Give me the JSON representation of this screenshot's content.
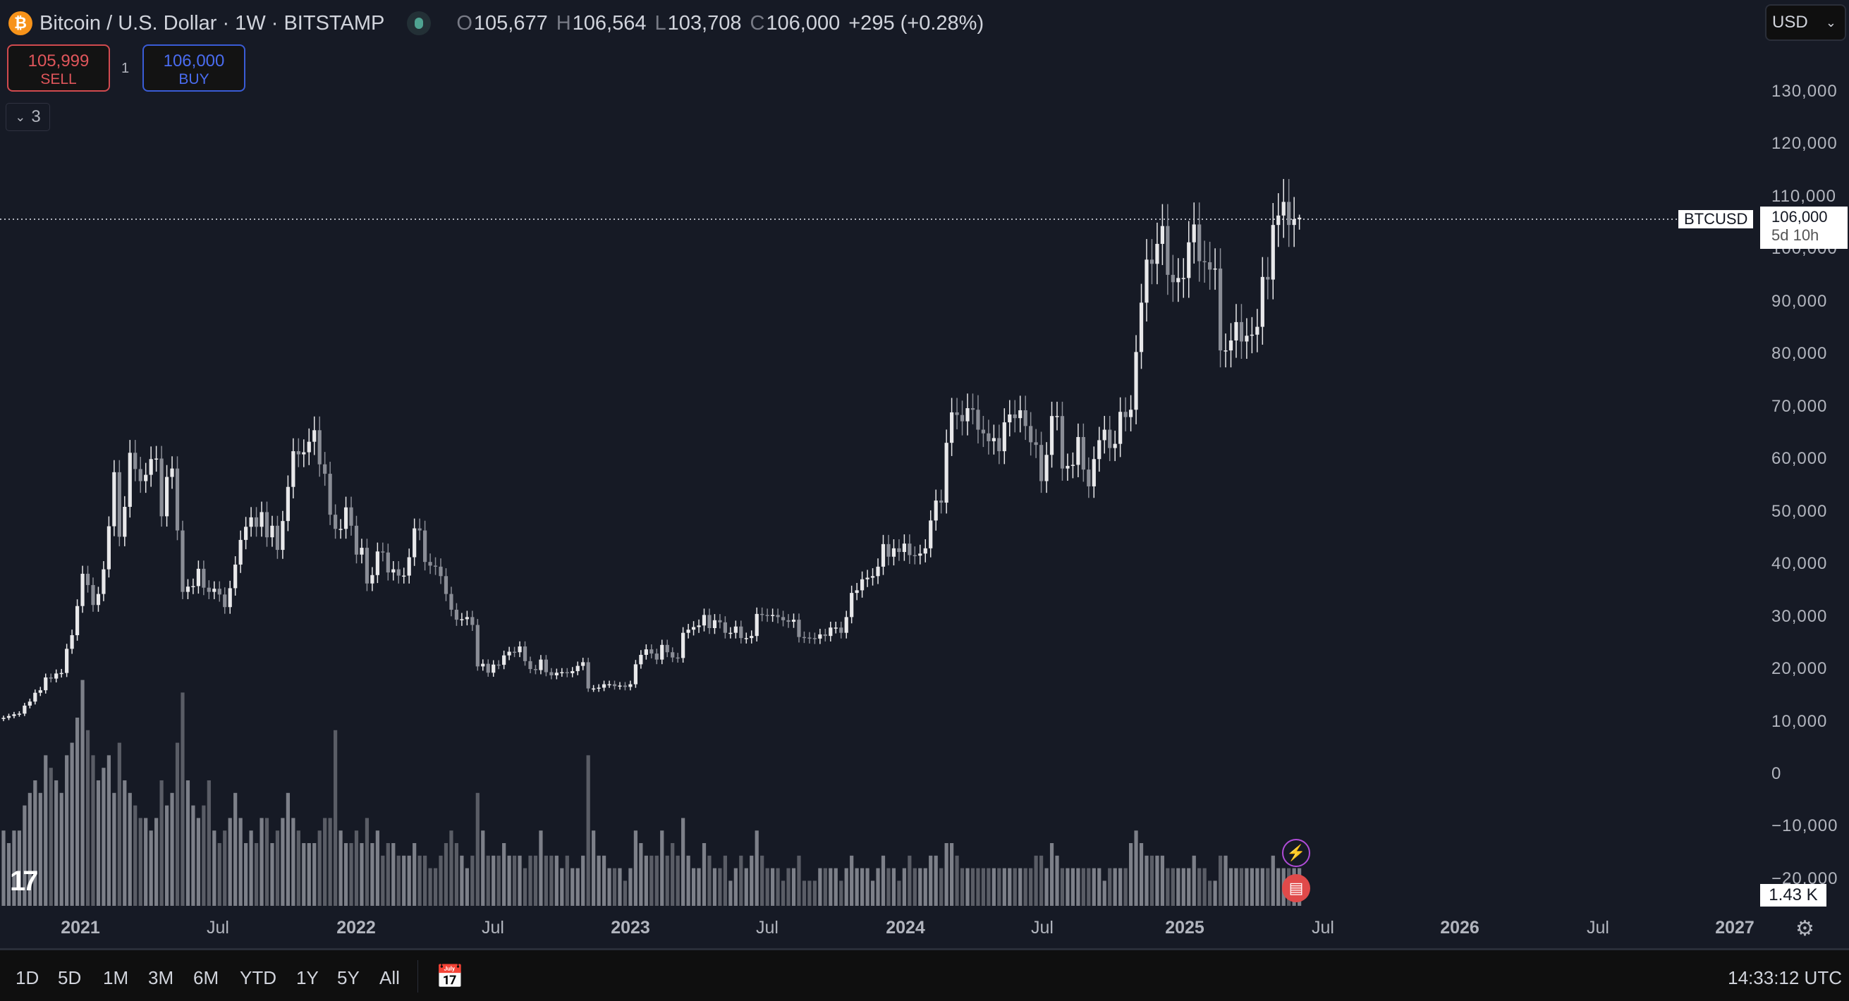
{
  "header": {
    "title": "Bitcoin / U.S. Dollar · 1W · BITSTAMP",
    "ohlc": {
      "o_label": "O",
      "o": "105,677",
      "h_label": "H",
      "h": "106,564",
      "l_label": "L",
      "l": "103,708",
      "c_label": "C",
      "c": "106,000",
      "change": "+295 (+0.28%)"
    },
    "icon": "bitcoin-logo",
    "market_status": "market-open-dot"
  },
  "trade": {
    "sell_price": "105,999",
    "sell_label": "SELL",
    "qty": "1",
    "buy_price": "106,000",
    "buy_label": "BUY"
  },
  "indicators_toggle": {
    "count": "3"
  },
  "currency": {
    "value": "USD"
  },
  "price_axis": {
    "ticks": [
      "130,000",
      "120,000",
      "110,000",
      "100,000",
      "90,000",
      "80,000",
      "70,000",
      "60,000",
      "50,000",
      "40,000",
      "30,000",
      "20,000",
      "10,000",
      "0",
      "−10,000",
      "−20,000"
    ]
  },
  "last_price": {
    "symbol": "BTCUSD",
    "price": "106,000",
    "countdown": "5d 10h"
  },
  "volume_label": "1.43 K",
  "time_axis": {
    "ticks": [
      "2021",
      "Jul",
      "2022",
      "Jul",
      "2023",
      "Jul",
      "2024",
      "Jul",
      "2025",
      "Jul",
      "2026",
      "Jul",
      "2027"
    ]
  },
  "ranges": [
    "1D",
    "5D",
    "1M",
    "3M",
    "6M",
    "YTD",
    "1Y",
    "5Y",
    "All"
  ],
  "clock": "14:33:12 UTC",
  "colors": {
    "background": "#161a25",
    "up": "#e8e8ea",
    "down": "#8a8d96",
    "volume": "#6b6e78",
    "sell": "#e0565b",
    "buy": "#4a6cf0"
  },
  "chart_data": {
    "type": "candlestick",
    "interval": "1W",
    "symbol": "BTCUSD",
    "start_week": "2020-09-21",
    "ylim": [
      -20000,
      130000
    ],
    "current_candle": {
      "open": 105677,
      "high": 106564,
      "low": 103708,
      "close": 106000
    },
    "close": [
      10700,
      11050,
      11380,
      11500,
      13030,
      13800,
      15480,
      15960,
      18400,
      18180,
      19150,
      19250,
      23850,
      26450,
      32000,
      38150,
      36000,
      32200,
      34300,
      39000,
      47200,
      57500,
      45200,
      50900,
      61200,
      58100,
      55800,
      57000,
      60000,
      60100,
      49100,
      56600,
      58200,
      46400,
      34700,
      35700,
      35800,
      39100,
      35500,
      34700,
      35300,
      34200,
      31800,
      35400,
      39900,
      44600,
      47100,
      48900,
      47100,
      49900,
      45100,
      47300,
      42700,
      48200,
      54700,
      61500,
      60900,
      61300,
      63300,
      65500,
      59000,
      57200,
      49400,
      46700,
      46700,
      50800,
      47300,
      41800,
      43100,
      36300,
      37900,
      42400,
      42200,
      38400,
      39000,
      37800,
      37800,
      41300,
      46800,
      46400,
      40400,
      39700,
      39500,
      37700,
      34300,
      31300,
      29400,
      29500,
      29900,
      28400,
      20500,
      21000,
      19300,
      20850,
      20800,
      22600,
      23300,
      23200,
      24300,
      21500,
      20000,
      19800,
      21800,
      19400,
      18800,
      19300,
      19400,
      19200,
      19600,
      20600,
      21300,
      16300,
      16300,
      16450,
      17100,
      17100,
      16750,
      16850,
      16600,
      17100,
      20900,
      22700,
      23750,
      22950,
      21800,
      24600,
      23200,
      22200,
      22100,
      26900,
      27500,
      28000,
      28300,
      30300,
      27800,
      29300,
      28900,
      26900,
      26900,
      28100,
      25900,
      25900,
      26300,
      30500,
      30300,
      30200,
      30300,
      29900,
      29300,
      29000,
      29400,
      26100,
      26000,
      25900,
      25800,
      26600,
      26300,
      27900,
      27900,
      26900,
      29900,
      34500,
      35000,
      37100,
      37400,
      37700,
      39500,
      43800,
      41400,
      43000,
      42300,
      43900,
      41700,
      41600,
      42000,
      43000,
      48300,
      52100,
      51700,
      63100,
      68900,
      68400,
      67200,
      69700,
      69400,
      65600,
      64900,
      63400,
      64000,
      61500,
      67000,
      68500,
      67800,
      69300,
      66300,
      63200,
      62700,
      55800,
      60800,
      68200,
      68200,
      58200,
      58700,
      58900,
      64200,
      58000,
      54800,
      60000,
      63600,
      65600,
      62100,
      62900,
      69000,
      68000,
      69400,
      80400,
      89800,
      98000,
      97200,
      101000,
      104400,
      95100,
      93700,
      94500,
      94500,
      101300,
      104700,
      97700,
      97500,
      96100,
      96300,
      80700,
      80700,
      82600,
      86100,
      82400,
      83500,
      83700,
      85200,
      94700,
      94200,
      104600,
      106400,
      109000,
      104600,
      105700,
      106000
    ],
    "volume_k": [
      6,
      5,
      6,
      6,
      8,
      9,
      10,
      9,
      12,
      11,
      10,
      9,
      12,
      13,
      15,
      18,
      14,
      12,
      10,
      11,
      12,
      9,
      13,
      10,
      9,
      8,
      7,
      7,
      6,
      7,
      10,
      8,
      9,
      13,
      17,
      10,
      8,
      7,
      8,
      10,
      6,
      5,
      6,
      7,
      9,
      7,
      5,
      6,
      5,
      7,
      7,
      5,
      6,
      7,
      9,
      7,
      6,
      5,
      5,
      5,
      6,
      7,
      7,
      14,
      6,
      5,
      5,
      6,
      5,
      7,
      5,
      6,
      4,
      5,
      5,
      4,
      4,
      4,
      5,
      4,
      4,
      3,
      3,
      4,
      5,
      6,
      5,
      4,
      3,
      4,
      9,
      6,
      4,
      4,
      4,
      5,
      4,
      4,
      4,
      3,
      4,
      4,
      6,
      4,
      4,
      4,
      3,
      4,
      3,
      3,
      4,
      12,
      6,
      4,
      4,
      3,
      3,
      3,
      2,
      3,
      6,
      5,
      4,
      4,
      4,
      6,
      4,
      5,
      4,
      7,
      4,
      3,
      3,
      5,
      4,
      3,
      3,
      4,
      2,
      3,
      4,
      3,
      4,
      6,
      4,
      3,
      3,
      3,
      2,
      3,
      3,
      4,
      2,
      2,
      2,
      3,
      3,
      3,
      3,
      2,
      3,
      4,
      3,
      3,
      3,
      2,
      3,
      4,
      3,
      3,
      2,
      3,
      4,
      3,
      3,
      3,
      4,
      4,
      3,
      5,
      5,
      4,
      3,
      3,
      3,
      3,
      3,
      3,
      3,
      3,
      3,
      3,
      3,
      3,
      3,
      3,
      4,
      4,
      3,
      5,
      4,
      3,
      3,
      3,
      3,
      3,
      3,
      3,
      3,
      2,
      3,
      3,
      3,
      3,
      5,
      6,
      5,
      4,
      4,
      4,
      4,
      3,
      3,
      3,
      3,
      3,
      4,
      3,
      3,
      2,
      2,
      4,
      4,
      3,
      3,
      3,
      3,
      3,
      3,
      3,
      3,
      4,
      3,
      3,
      3,
      3,
      3,
      1.43
    ]
  }
}
